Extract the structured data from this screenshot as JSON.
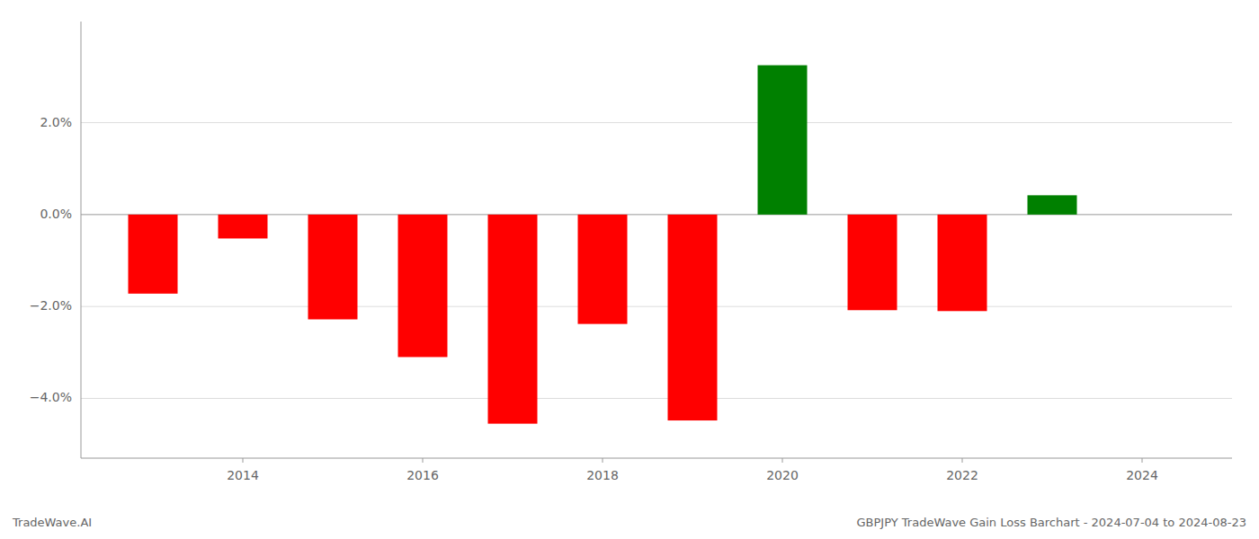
{
  "chart_data": {
    "type": "bar",
    "title": "GBPJPY TradeWave Gain Loss Barchart - 2024-07-04 to 2024-08-23",
    "annotations": [
      "TradeWave.AI"
    ],
    "x": [
      2013,
      2014,
      2015,
      2016,
      2017,
      2018,
      2019,
      2020,
      2021,
      2022,
      2023
    ],
    "values": [
      -1.72,
      -0.52,
      -2.28,
      -3.1,
      -4.55,
      -2.38,
      -4.48,
      3.25,
      -2.08,
      -2.1,
      0.42
    ],
    "colors": [
      "#ff0000",
      "#ff0000",
      "#ff0000",
      "#ff0000",
      "#ff0000",
      "#ff0000",
      "#ff0000",
      "#008000",
      "#ff0000",
      "#ff0000",
      "#008000"
    ],
    "xlim": [
      2012.2,
      2025.0
    ],
    "ylim": [
      -5.3,
      4.2
    ],
    "xticks": [
      2014,
      2016,
      2018,
      2020,
      2022,
      2024
    ],
    "yticks": [
      {
        "value": -4.0,
        "label": "−4.0%"
      },
      {
        "value": -2.0,
        "label": "−2.0%"
      },
      {
        "value": 0.0,
        "label": "0.0%"
      },
      {
        "value": 2.0,
        "label": "2.0%"
      }
    ],
    "grid": true
  }
}
